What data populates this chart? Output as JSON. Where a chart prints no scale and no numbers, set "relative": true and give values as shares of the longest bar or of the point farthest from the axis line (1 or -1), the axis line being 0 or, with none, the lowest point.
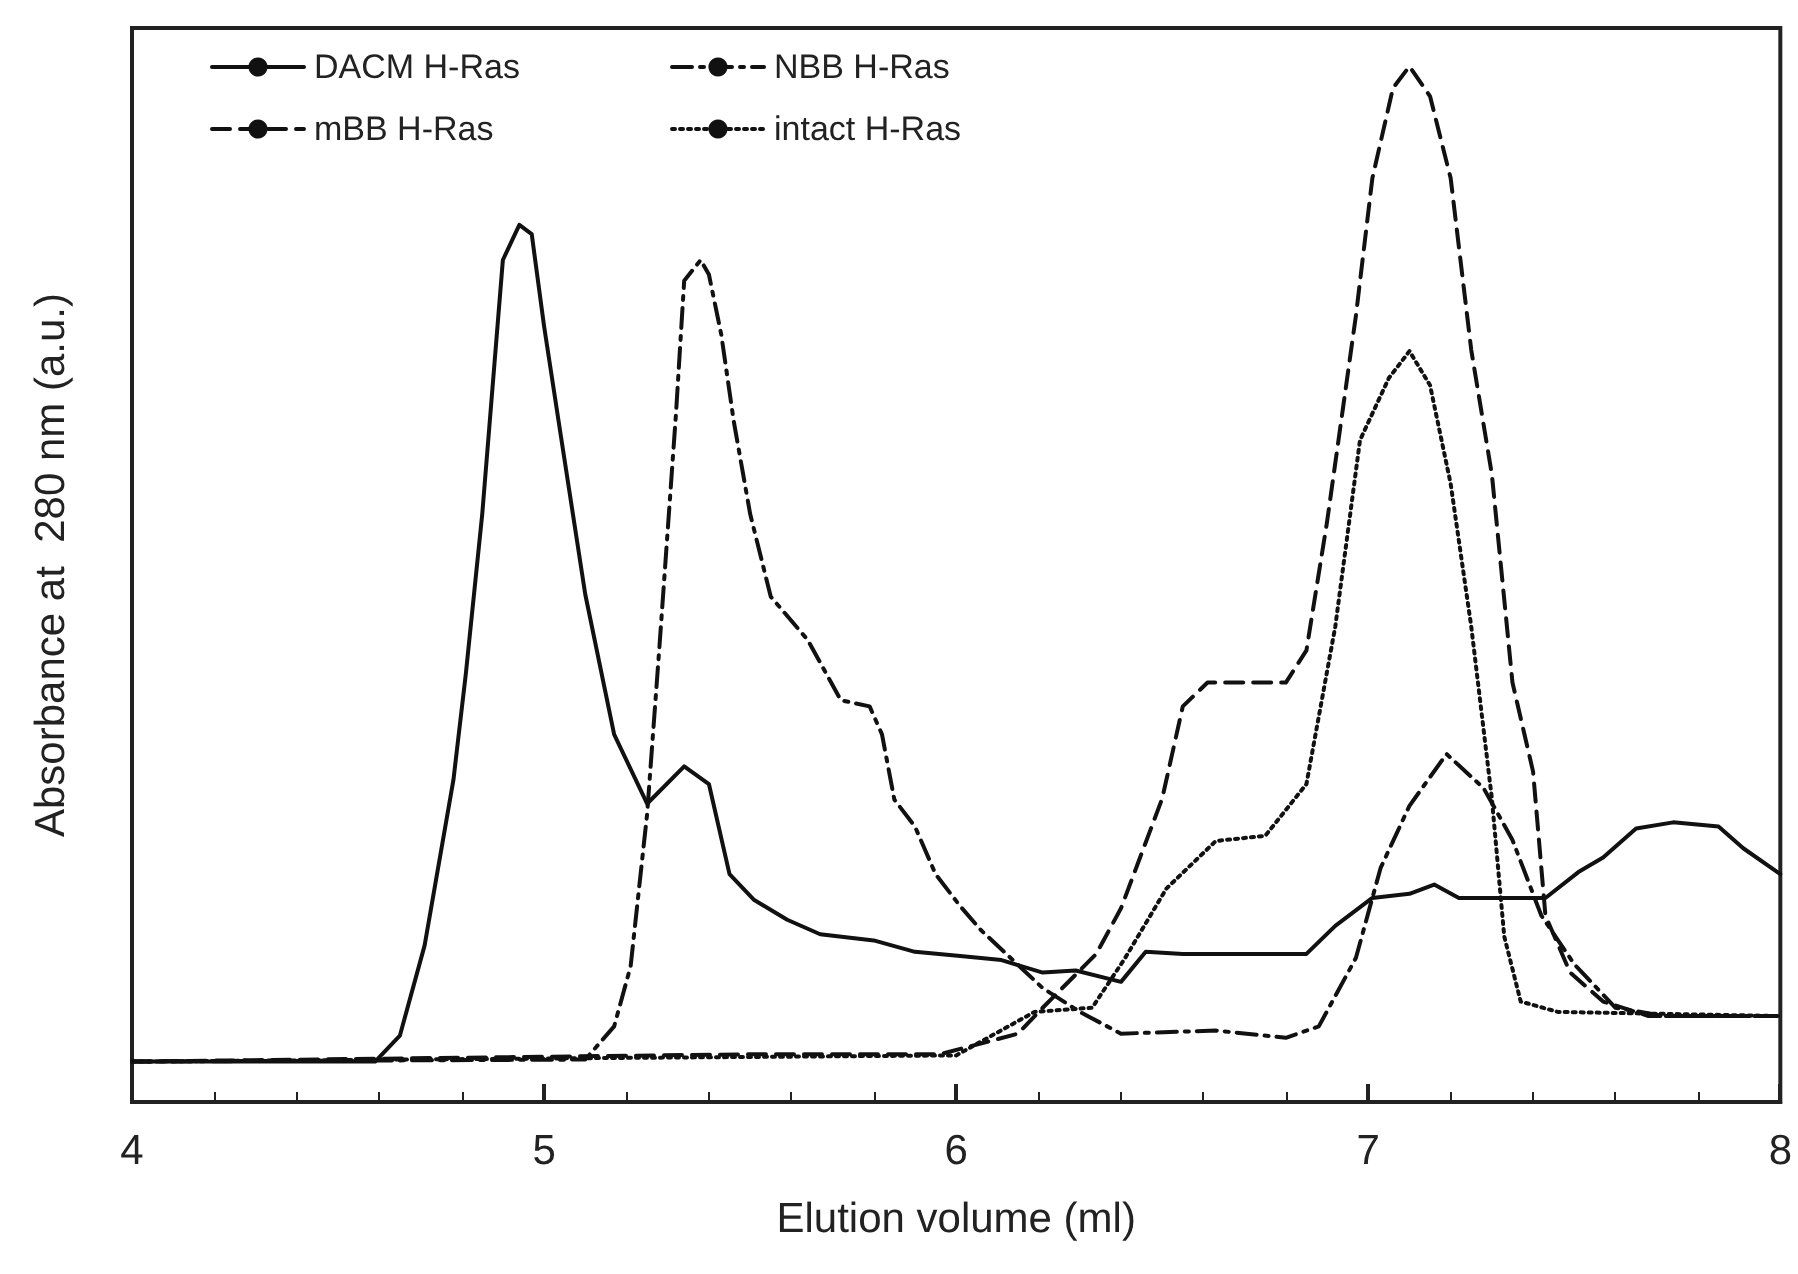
{
  "chart_data": {
    "type": "line",
    "relative": true,
    "xlabel": "Elution volume (ml)",
    "ylabel": "Absorbance at  280 nm (a.u.)",
    "xlim": [
      4,
      8
    ],
    "xticks": [
      4,
      5,
      6,
      7,
      8
    ],
    "grid": false,
    "legend": "top left",
    "marker": "none",
    "series": [
      {
        "name": "DACM H-Ras",
        "color": "#111111",
        "line_style": "solid",
        "x": [
          4.0,
          4.59,
          4.65,
          4.71,
          4.78,
          4.81,
          4.85,
          4.9,
          4.94,
          4.97,
          5.0,
          5.04,
          5.1,
          5.17,
          5.25,
          5.34,
          5.4,
          5.45,
          5.51,
          5.59,
          5.67,
          5.8,
          5.9,
          6.01,
          6.11,
          6.21,
          6.29,
          6.4,
          6.46,
          6.55,
          6.85,
          6.92,
          7.01,
          7.1,
          7.16,
          7.22,
          7.43,
          7.51,
          7.57,
          7.65,
          7.74,
          7.85,
          7.91,
          8.0
        ],
        "values": [
          0.039,
          0.039,
          0.064,
          0.151,
          0.311,
          0.413,
          0.568,
          0.813,
          0.847,
          0.838,
          0.749,
          0.645,
          0.49,
          0.355,
          0.288,
          0.324,
          0.307,
          0.22,
          0.195,
          0.176,
          0.162,
          0.156,
          0.145,
          0.141,
          0.137,
          0.125,
          0.127,
          0.116,
          0.145,
          0.143,
          0.143,
          0.17,
          0.197,
          0.201,
          0.21,
          0.197,
          0.197,
          0.222,
          0.236,
          0.264,
          0.27,
          0.266,
          0.245,
          0.22
        ]
      },
      {
        "name": "NBB H-Ras",
        "color": "#111111",
        "line_style": "dashdot",
        "x": [
          4.0,
          5.1,
          5.17,
          5.21,
          5.25,
          5.28,
          5.32,
          5.34,
          5.38,
          5.4,
          5.43,
          5.46,
          5.5,
          5.55,
          5.64,
          5.72,
          5.79,
          5.82,
          5.85,
          5.9,
          5.95,
          6.01,
          6.06,
          6.21,
          6.3,
          6.4,
          6.63,
          6.8,
          6.88,
          6.97,
          7.03,
          7.1,
          7.19,
          7.28,
          7.35,
          7.42,
          7.5,
          7.6,
          7.72,
          8.0
        ],
        "values": [
          0.039,
          0.041,
          0.073,
          0.131,
          0.278,
          0.44,
          0.664,
          0.793,
          0.813,
          0.799,
          0.741,
          0.658,
          0.568,
          0.488,
          0.446,
          0.388,
          0.382,
          0.355,
          0.292,
          0.266,
          0.22,
          0.189,
          0.166,
          0.11,
          0.087,
          0.066,
          0.069,
          0.062,
          0.073,
          0.139,
          0.226,
          0.286,
          0.336,
          0.303,
          0.253,
          0.18,
          0.133,
          0.091,
          0.083,
          0.083
        ]
      },
      {
        "name": "mBB H-Ras",
        "color": "#111111",
        "line_style": "dashed",
        "x": [
          4.0,
          5.49,
          5.96,
          6.15,
          6.21,
          6.34,
          6.4,
          6.5,
          6.55,
          6.61,
          6.8,
          6.85,
          6.9,
          6.97,
          7.01,
          7.06,
          7.1,
          7.15,
          7.2,
          7.25,
          7.3,
          7.35,
          7.4,
          7.43,
          7.49,
          7.57,
          7.68,
          8.0
        ],
        "values": [
          0.039,
          0.046,
          0.046,
          0.066,
          0.091,
          0.143,
          0.187,
          0.293,
          0.382,
          0.405,
          0.405,
          0.436,
          0.56,
          0.759,
          0.892,
          0.979,
          1,
          0.971,
          0.892,
          0.726,
          0.606,
          0.405,
          0.319,
          0.18,
          0.125,
          0.097,
          0.083,
          0.083
        ]
      },
      {
        "name": "intact H-Ras",
        "color": "#111111",
        "line_style": "dotted",
        "x": [
          4.0,
          6.0,
          6.19,
          6.33,
          6.41,
          6.51,
          6.63,
          6.75,
          6.85,
          6.92,
          6.98,
          7.05,
          7.1,
          7.15,
          7.2,
          7.25,
          7.3,
          7.33,
          7.37,
          7.46,
          8.0
        ],
        "values": [
          0.039,
          0.045,
          0.087,
          0.091,
          0.139,
          0.206,
          0.252,
          0.257,
          0.307,
          0.459,
          0.639,
          0.699,
          0.725,
          0.692,
          0.597,
          0.459,
          0.293,
          0.16,
          0.097,
          0.087,
          0.083
        ]
      }
    ]
  }
}
